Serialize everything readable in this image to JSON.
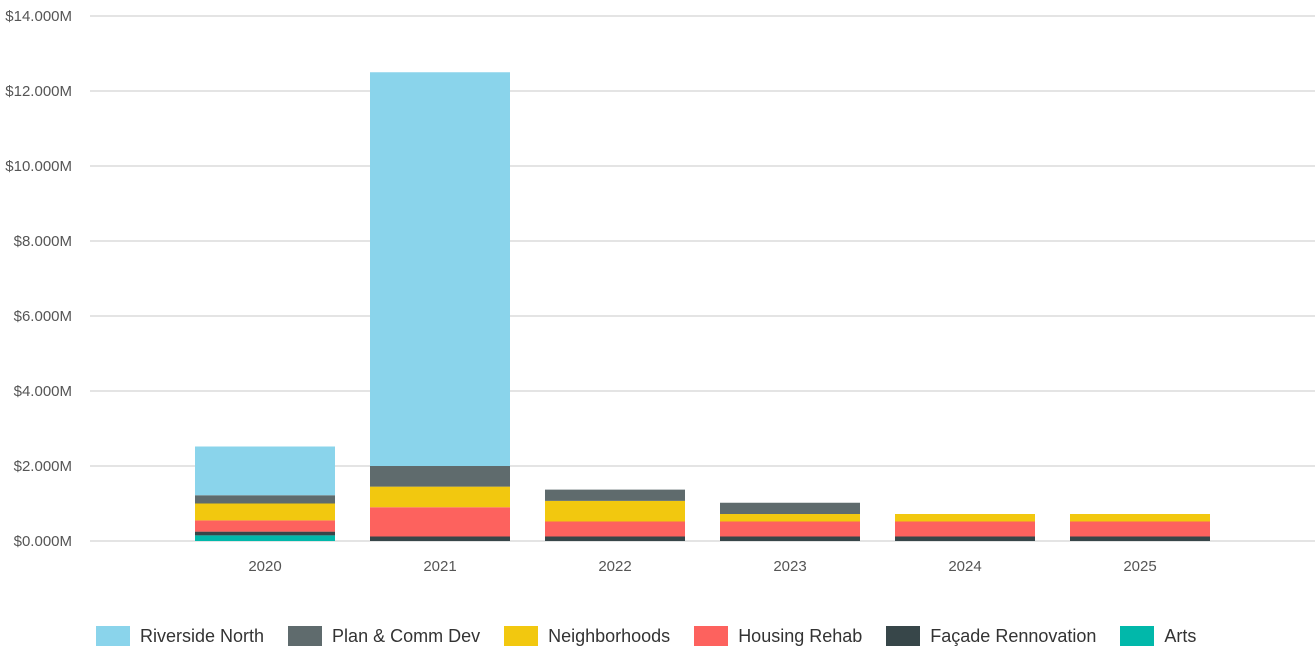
{
  "chart_data": {
    "type": "bar",
    "stacked": true,
    "categories": [
      "2020",
      "2021",
      "2022",
      "2023",
      "2024",
      "2025"
    ],
    "ylim": [
      0,
      14
    ],
    "yticks": [
      0,
      2,
      4,
      6,
      8,
      10,
      12,
      14
    ],
    "ytick_labels": [
      "$0.000M",
      "$2.000M",
      "$4.000M",
      "$6.000M",
      "$8.000M",
      "$10.000M",
      "$12.000M",
      "$14.000M"
    ],
    "grid": true,
    "legend_position": "bottom",
    "series": [
      {
        "name": "Arts",
        "color": "#01b8aa",
        "values": [
          0.15,
          0,
          0,
          0,
          0,
          0
        ]
      },
      {
        "name": "Façade Rennovation",
        "color": "#374649",
        "values": [
          0.1,
          0.12,
          0.12,
          0.12,
          0.12,
          0.12
        ]
      },
      {
        "name": "Housing Rehab",
        "color": "#fd625e",
        "values": [
          0.3,
          0.78,
          0.4,
          0.4,
          0.4,
          0.4
        ]
      },
      {
        "name": "Neighborhoods",
        "color": "#f2c80f",
        "values": [
          0.45,
          0.55,
          0.55,
          0.2,
          0.2,
          0.2
        ]
      },
      {
        "name": "Plan & Comm Dev",
        "color": "#5f6b6d",
        "values": [
          0.22,
          0.55,
          0.3,
          0.3,
          0,
          0
        ]
      },
      {
        "name": "Riverside North",
        "color": "#8ad4eb",
        "values": [
          1.3,
          10.5,
          0,
          0,
          0,
          0
        ]
      }
    ],
    "legend_order": [
      "Riverside North",
      "Plan & Comm Dev",
      "Neighborhoods",
      "Housing Rehab",
      "Façade Rennovation",
      "Arts"
    ]
  }
}
